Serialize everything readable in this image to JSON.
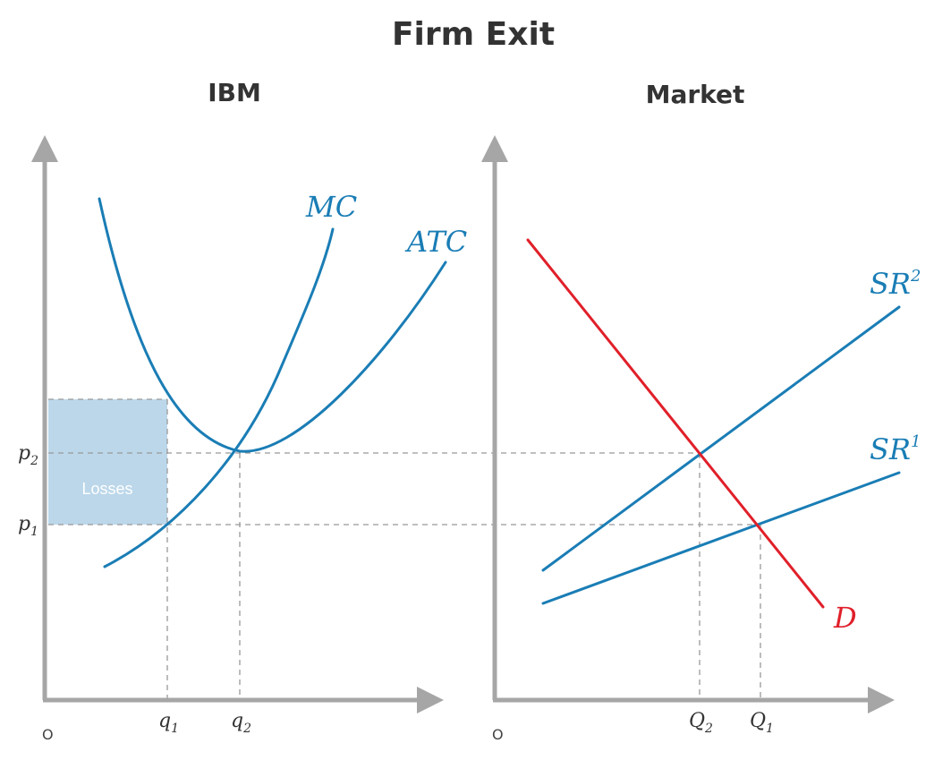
{
  "title": "Firm Exit",
  "colors": {
    "curve_blue": "#1a7db5",
    "demand_red": "#e0202a",
    "loss_fill": "#bcd7ea",
    "axis_gray": "#a6a6a6"
  },
  "firm": {
    "title": "IBM",
    "origin_label": "O",
    "curves": {
      "mc": "MC",
      "atc": "ATC"
    },
    "region_label": "Losses",
    "y_labels": [
      {
        "base": "p",
        "sub": "2"
      },
      {
        "base": "p",
        "sub": "1"
      }
    ],
    "x_labels": [
      {
        "base": "q",
        "sub": "1"
      },
      {
        "base": "q",
        "sub": "2"
      }
    ]
  },
  "market": {
    "title": "Market",
    "origin_label": "O",
    "curves": {
      "sr2": {
        "base": "SR",
        "sup": "2"
      },
      "sr1": {
        "base": "SR",
        "sup": "1"
      },
      "demand": "D"
    },
    "x_labels": [
      {
        "base": "Q",
        "sub": "2"
      },
      {
        "base": "Q",
        "sub": "1"
      }
    ]
  }
}
